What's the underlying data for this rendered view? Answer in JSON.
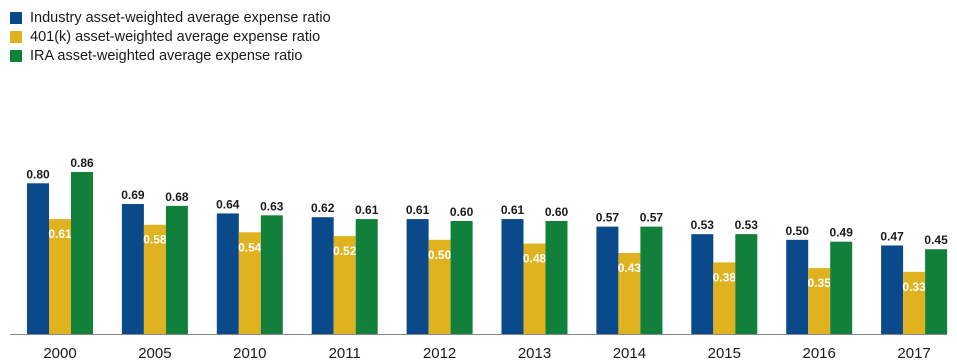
{
  "chart_data": {
    "type": "bar",
    "categories": [
      "2000",
      "2005",
      "2010",
      "2011",
      "2012",
      "2013",
      "2014",
      "2015",
      "2016",
      "2017"
    ],
    "series": [
      {
        "name": "Industry asset-weighted average expense ratio",
        "color": "#0a4a8a",
        "values": [
          0.8,
          0.69,
          0.64,
          0.62,
          0.61,
          0.61,
          0.57,
          0.53,
          0.5,
          0.47
        ],
        "labels": [
          "0.80",
          "0.69",
          "0.64",
          "0.62",
          "0.61",
          "0.61",
          "0.57",
          "0.53",
          "0.50",
          "0.47"
        ]
      },
      {
        "name": "401(k) asset-weighted average expense ratio",
        "color": "#e0b21f",
        "values": [
          0.61,
          0.58,
          0.54,
          0.52,
          0.5,
          0.48,
          0.43,
          0.38,
          0.35,
          0.33
        ],
        "labels": [
          "0.61",
          "0.58",
          "0.54",
          "0.52",
          "0.50",
          "0.48",
          "0.43",
          "0.38",
          "0.35",
          "0.33"
        ]
      },
      {
        "name": "IRA asset-weighted average expense ratio",
        "color": "#10803a",
        "values": [
          0.86,
          0.68,
          0.63,
          0.61,
          0.6,
          0.6,
          0.57,
          0.53,
          0.49,
          0.45
        ],
        "labels": [
          "0.86",
          "0.68",
          "0.63",
          "0.61",
          "0.60",
          "0.60",
          "0.57",
          "0.53",
          "0.49",
          "0.45"
        ]
      }
    ],
    "ylim": [
      0,
      0.86
    ],
    "grid": false,
    "legend_position": "top-left",
    "axis_line_color": "#888888"
  }
}
